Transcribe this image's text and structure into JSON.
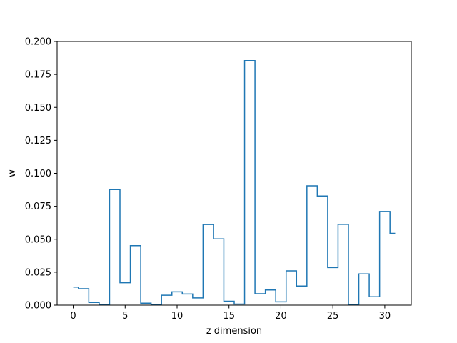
{
  "chart_data": {
    "type": "line",
    "drawstyle": "steps-mid",
    "title": "",
    "xlabel": "z dimension",
    "ylabel": "w",
    "xlim": [
      -1.55,
      32.55
    ],
    "ylim": [
      0,
      0.2
    ],
    "xticks": [
      0,
      5,
      10,
      15,
      20,
      25,
      30
    ],
    "yticks": [
      0.0,
      0.025,
      0.05,
      0.075,
      0.1,
      0.125,
      0.15,
      0.175,
      0.2
    ],
    "ytick_labels": [
      "0.000",
      "0.025",
      "0.050",
      "0.075",
      "0.100",
      "0.125",
      "0.150",
      "0.175",
      "0.200"
    ],
    "grid": false,
    "series": [
      {
        "color": "#1f77b4",
        "x": [
          0,
          1,
          2,
          3,
          4,
          5,
          6,
          7,
          8,
          9,
          10,
          11,
          12,
          13,
          14,
          15,
          16,
          17,
          18,
          19,
          20,
          21,
          22,
          23,
          24,
          25,
          26,
          27,
          28,
          29,
          30,
          31
        ],
        "values": [
          0.0137,
          0.0125,
          0.002,
          0.0002,
          0.0877,
          0.017,
          0.0451,
          0.0015,
          0.0002,
          0.0075,
          0.0101,
          0.0085,
          0.0055,
          0.0612,
          0.0503,
          0.003,
          0.0008,
          0.1855,
          0.0087,
          0.0115,
          0.0025,
          0.026,
          0.0145,
          0.0905,
          0.0828,
          0.0285,
          0.0613,
          0.0002,
          0.0237,
          0.0064,
          0.0711,
          0.0545
        ]
      }
    ]
  }
}
